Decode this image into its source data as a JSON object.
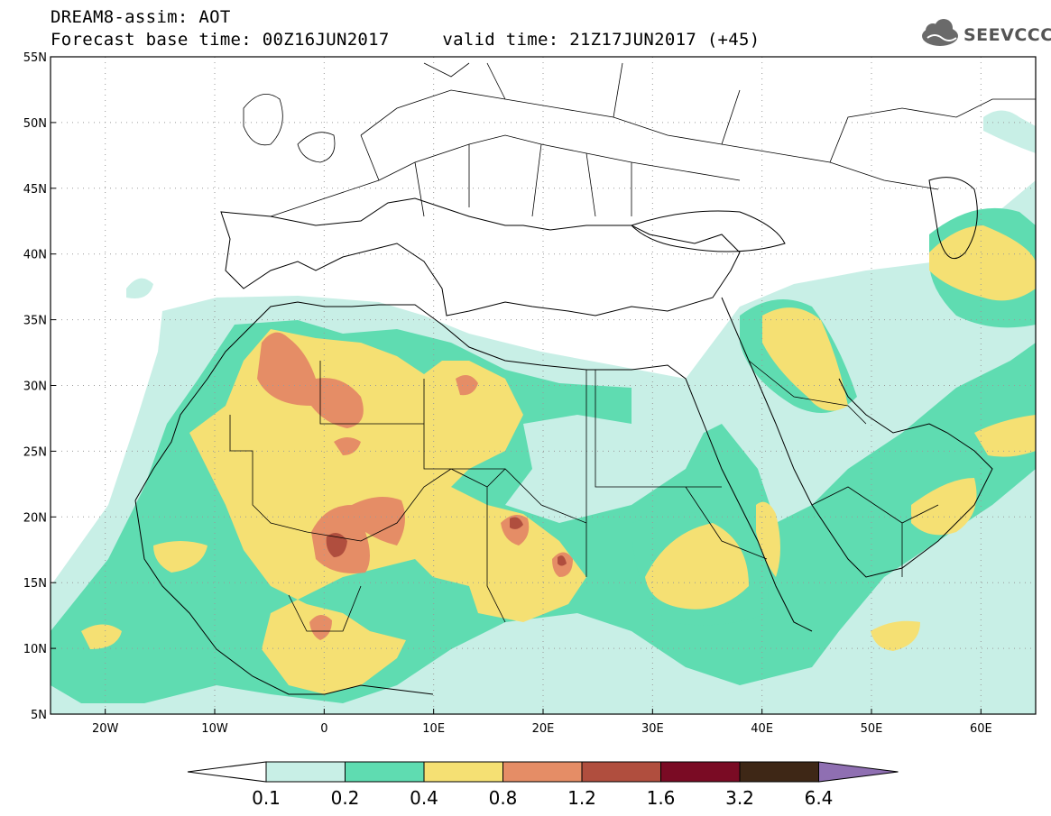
{
  "header": {
    "title_line1": "DREAM8-assim: AOT",
    "title_line2": "Forecast base time: 00Z16JUN2017     valid time: 21Z17JUN2017 (+45)"
  },
  "logo": {
    "text": "SEEVCCC",
    "icon": "cloud-logo-icon"
  },
  "map": {
    "lon_range": [
      -25,
      65
    ],
    "lat_range": [
      5,
      55
    ],
    "lat_ticks": [
      {
        "value": 55,
        "label": "55N"
      },
      {
        "value": 50,
        "label": "50N"
      },
      {
        "value": 45,
        "label": "45N"
      },
      {
        "value": 40,
        "label": "40N"
      },
      {
        "value": 35,
        "label": "35N"
      },
      {
        "value": 30,
        "label": "30N"
      },
      {
        "value": 25,
        "label": "25N"
      },
      {
        "value": 20,
        "label": "20N"
      },
      {
        "value": 15,
        "label": "15N"
      },
      {
        "value": 10,
        "label": "10N"
      },
      {
        "value": 5,
        "label": "5N"
      }
    ],
    "lon_ticks": [
      {
        "value": -20,
        "label": "20W"
      },
      {
        "value": -10,
        "label": "10W"
      },
      {
        "value": 0,
        "label": "0"
      },
      {
        "value": 10,
        "label": "10E"
      },
      {
        "value": 20,
        "label": "20E"
      },
      {
        "value": 30,
        "label": "30E"
      },
      {
        "value": 40,
        "label": "40E"
      },
      {
        "value": 50,
        "label": "50E"
      },
      {
        "value": 60,
        "label": "60E"
      }
    ],
    "grid": "dotted"
  },
  "colorbar": {
    "labels": [
      "0.1",
      "0.2",
      "0.4",
      "0.8",
      "1.2",
      "1.6",
      "3.2",
      "6.4"
    ],
    "colors": [
      "#ffffff",
      "#c8efe6",
      "#5fdcb1",
      "#f5e073",
      "#e58d66",
      "#b04e3e",
      "#7a0b24",
      "#3e2716",
      "#8f6fb2"
    ]
  }
}
